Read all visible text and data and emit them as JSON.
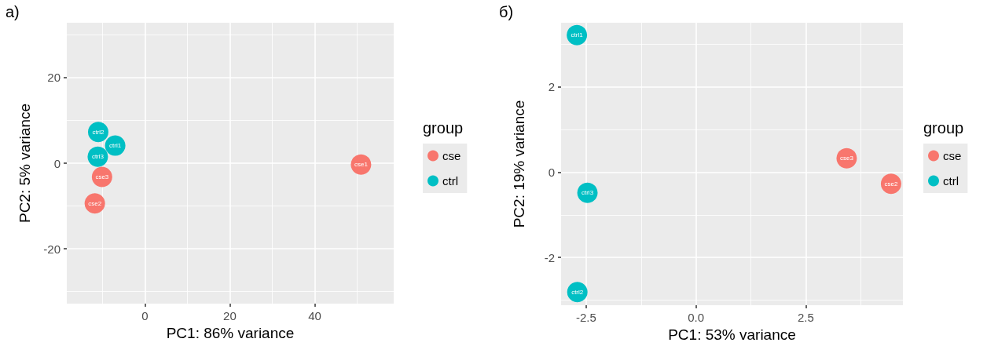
{
  "chart_data": [
    {
      "type": "scatter",
      "title": "a)",
      "xlabel": "PC1: 86% variance",
      "ylabel": "PC2: 5% variance",
      "legend_title": "group",
      "series": [
        {
          "name": "cse",
          "color": "#f8766d",
          "x": [
            50.9,
            -11.8,
            -10.1
          ],
          "values": [
            -0.3,
            -9.4,
            -3.2
          ]
        },
        {
          "name": "ctrl",
          "color": "#00bfc4",
          "x": [
            -7.0,
            -11.0,
            -11.1
          ],
          "values": [
            4.1,
            7.3,
            1.5
          ]
        }
      ],
      "annotations": [
        {
          "text": "cse1",
          "x": 50.9,
          "y": -0.3
        },
        {
          "text": "cse2",
          "x": -11.8,
          "y": -9.4
        },
        {
          "text": "cse3",
          "x": -10.1,
          "y": -3.2
        },
        {
          "text": "ctrl1",
          "x": -7.0,
          "y": 4.1
        },
        {
          "text": "ctrl2",
          "x": -11.0,
          "y": 7.3
        },
        {
          "text": "ctrl3",
          "x": -11.1,
          "y": 1.5
        }
      ],
      "xlim": [
        -18.4,
        58.6
      ],
      "ylim": [
        -32.8,
        32.8
      ],
      "xticks": [
        0,
        20,
        40
      ],
      "yticks": [
        -20,
        0,
        20
      ],
      "grid": true,
      "legend": "right",
      "marker": "circle"
    },
    {
      "type": "scatter",
      "title": "б)",
      "xlabel": "PC1: 53% variance",
      "ylabel": "PC2: 19% variance",
      "legend_title": "group",
      "series": [
        {
          "name": "cse",
          "color": "#f8766d",
          "x": [
            4.44,
            3.43
          ],
          "values": [
            -0.27,
            0.33
          ]
        },
        {
          "name": "ctrl",
          "color": "#00bfc4",
          "x": [
            -2.71,
            -2.7,
            -2.47
          ],
          "values": [
            3.22,
            -2.81,
            -0.48
          ]
        }
      ],
      "annotations": [
        {
          "text": "cse2",
          "x": 4.44,
          "y": -0.27
        },
        {
          "text": "cse3",
          "x": 3.43,
          "y": 0.33
        },
        {
          "text": "ctrl1",
          "x": -2.71,
          "y": 3.22
        },
        {
          "text": "ctrl2",
          "x": -2.7,
          "y": -2.81
        },
        {
          "text": "ctrl3",
          "x": -2.47,
          "y": -0.48
        }
      ],
      "xlim": [
        -3.07,
        4.71
      ],
      "ylim": [
        -3.12,
        3.51
      ],
      "xticks": [
        -2.5,
        {
          "value": 0,
          "label": "0.0"
        },
        2.5
      ],
      "yticks": [
        -2,
        0,
        2
      ],
      "grid": true,
      "legend": "right",
      "marker": "circle"
    }
  ]
}
